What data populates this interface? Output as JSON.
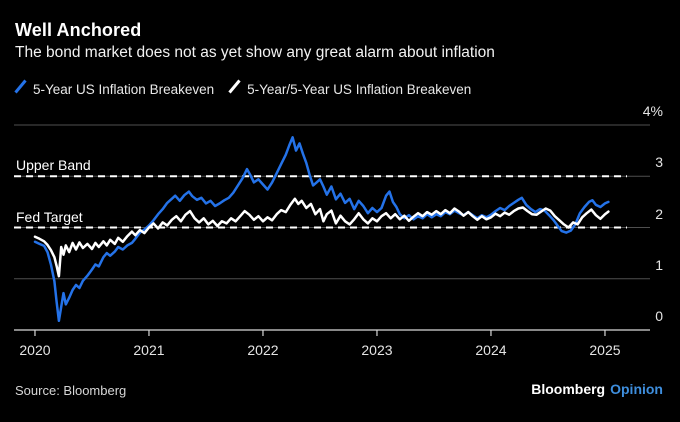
{
  "header": {
    "title": "Well Anchored",
    "subtitle": "The bond market does not as yet show any great alarm about inflation"
  },
  "legend": [
    {
      "label": "5-Year US Inflation Breakeven",
      "color": "#2472e8",
      "slug": "5y-breakeven"
    },
    {
      "label": "5-Year/5-Year US Inflation Breakeven",
      "color": "#ffffff",
      "slug": "5y5y-breakeven"
    }
  ],
  "footer": {
    "source": "Source: Bloomberg",
    "brand": "Bloomberg",
    "brand_suffix": "Opinion"
  },
  "colors": {
    "background": "#000000",
    "line_blue": "#2472e8",
    "line_white": "#ffffff",
    "grid": "#4f4f4f",
    "axis": "#d9d9d9",
    "dashed": "#ffffff",
    "opinion_blue": "#3e8edd"
  },
  "chart_data": {
    "type": "line",
    "title": "Well Anchored",
    "xlabel": "",
    "ylabel": "",
    "grid": true,
    "legend_position": "top",
    "x_range": [
      2019.816,
      2025.395
    ],
    "y_range": [
      0,
      4
    ],
    "x_ticks": [
      {
        "value": 2020,
        "label": "2020"
      },
      {
        "value": 2021,
        "label": "2021"
      },
      {
        "value": 2022,
        "label": "2022"
      },
      {
        "value": 2023,
        "label": "2023"
      },
      {
        "value": 2024,
        "label": "2024"
      },
      {
        "value": 2025,
        "label": "2025"
      }
    ],
    "y_ticks": [
      {
        "value": 0,
        "label": "0"
      },
      {
        "value": 1,
        "label": "1"
      },
      {
        "value": 2,
        "label": "2"
      },
      {
        "value": 3,
        "label": "3"
      },
      {
        "value": 4,
        "label": "4%"
      }
    ],
    "annotations": [
      {
        "label": "Upper Band",
        "value": 3.0,
        "style": "dashed",
        "slug": "upper-band"
      },
      {
        "label": "Fed Target",
        "value": 2.0,
        "style": "dashed",
        "slug": "fed-target"
      }
    ],
    "series": [
      {
        "name": "5-Year US Inflation Breakeven",
        "slug": "5y-breakeven",
        "color": "#2472e8",
        "points": [
          [
            2020.0,
            1.72
          ],
          [
            2020.04,
            1.68
          ],
          [
            2020.08,
            1.64
          ],
          [
            2020.11,
            1.52
          ],
          [
            2020.14,
            1.28
          ],
          [
            2020.17,
            0.95
          ],
          [
            2020.19,
            0.55
          ],
          [
            2020.21,
            0.18
          ],
          [
            2020.23,
            0.45
          ],
          [
            2020.25,
            0.72
          ],
          [
            2020.27,
            0.5
          ],
          [
            2020.3,
            0.63
          ],
          [
            2020.33,
            0.78
          ],
          [
            2020.36,
            0.88
          ],
          [
            2020.39,
            0.82
          ],
          [
            2020.42,
            0.96
          ],
          [
            2020.46,
            1.06
          ],
          [
            2020.5,
            1.18
          ],
          [
            2020.53,
            1.28
          ],
          [
            2020.56,
            1.24
          ],
          [
            2020.6,
            1.42
          ],
          [
            2020.63,
            1.5
          ],
          [
            2020.66,
            1.45
          ],
          [
            2020.7,
            1.53
          ],
          [
            2020.73,
            1.62
          ],
          [
            2020.77,
            1.57
          ],
          [
            2020.81,
            1.65
          ],
          [
            2020.85,
            1.7
          ],
          [
            2020.88,
            1.78
          ],
          [
            2020.92,
            1.9
          ],
          [
            2020.96,
            1.96
          ],
          [
            2021.0,
            2.04
          ],
          [
            2021.04,
            2.14
          ],
          [
            2021.08,
            2.26
          ],
          [
            2021.12,
            2.36
          ],
          [
            2021.16,
            2.48
          ],
          [
            2021.2,
            2.56
          ],
          [
            2021.23,
            2.62
          ],
          [
            2021.27,
            2.52
          ],
          [
            2021.31,
            2.63
          ],
          [
            2021.35,
            2.7
          ],
          [
            2021.38,
            2.61
          ],
          [
            2021.42,
            2.54
          ],
          [
            2021.46,
            2.58
          ],
          [
            2021.5,
            2.47
          ],
          [
            2021.54,
            2.52
          ],
          [
            2021.58,
            2.42
          ],
          [
            2021.62,
            2.47
          ],
          [
            2021.66,
            2.53
          ],
          [
            2021.7,
            2.58
          ],
          [
            2021.74,
            2.68
          ],
          [
            2021.78,
            2.82
          ],
          [
            2021.82,
            2.96
          ],
          [
            2021.86,
            3.14
          ],
          [
            2021.89,
            3.02
          ],
          [
            2021.92,
            2.88
          ],
          [
            2021.96,
            2.94
          ],
          [
            2022.0,
            2.84
          ],
          [
            2022.04,
            2.74
          ],
          [
            2022.08,
            2.88
          ],
          [
            2022.12,
            3.06
          ],
          [
            2022.16,
            3.24
          ],
          [
            2022.2,
            3.42
          ],
          [
            2022.23,
            3.6
          ],
          [
            2022.26,
            3.76
          ],
          [
            2022.29,
            3.5
          ],
          [
            2022.32,
            3.64
          ],
          [
            2022.35,
            3.44
          ],
          [
            2022.38,
            3.26
          ],
          [
            2022.41,
            3.02
          ],
          [
            2022.44,
            2.82
          ],
          [
            2022.47,
            2.88
          ],
          [
            2022.5,
            2.94
          ],
          [
            2022.53,
            2.8
          ],
          [
            2022.56,
            2.64
          ],
          [
            2022.6,
            2.8
          ],
          [
            2022.64,
            2.55
          ],
          [
            2022.68,
            2.66
          ],
          [
            2022.72,
            2.48
          ],
          [
            2022.76,
            2.56
          ],
          [
            2022.8,
            2.36
          ],
          [
            2022.84,
            2.52
          ],
          [
            2022.88,
            2.42
          ],
          [
            2022.92,
            2.28
          ],
          [
            2022.96,
            2.38
          ],
          [
            2023.0,
            2.3
          ],
          [
            2023.04,
            2.38
          ],
          [
            2023.08,
            2.62
          ],
          [
            2023.11,
            2.7
          ],
          [
            2023.14,
            2.5
          ],
          [
            2023.17,
            2.4
          ],
          [
            2023.2,
            2.26
          ],
          [
            2023.24,
            2.18
          ],
          [
            2023.28,
            2.24
          ],
          [
            2023.32,
            2.16
          ],
          [
            2023.36,
            2.22
          ],
          [
            2023.4,
            2.18
          ],
          [
            2023.44,
            2.26
          ],
          [
            2023.48,
            2.2
          ],
          [
            2023.52,
            2.26
          ],
          [
            2023.56,
            2.22
          ],
          [
            2023.6,
            2.3
          ],
          [
            2023.64,
            2.26
          ],
          [
            2023.68,
            2.33
          ],
          [
            2023.72,
            2.28
          ],
          [
            2023.76,
            2.24
          ],
          [
            2023.8,
            2.3
          ],
          [
            2023.84,
            2.24
          ],
          [
            2023.88,
            2.18
          ],
          [
            2023.92,
            2.24
          ],
          [
            2023.96,
            2.2
          ],
          [
            2024.0,
            2.25
          ],
          [
            2024.04,
            2.32
          ],
          [
            2024.08,
            2.38
          ],
          [
            2024.12,
            2.34
          ],
          [
            2024.16,
            2.42
          ],
          [
            2024.2,
            2.48
          ],
          [
            2024.24,
            2.54
          ],
          [
            2024.27,
            2.58
          ],
          [
            2024.31,
            2.44
          ],
          [
            2024.35,
            2.36
          ],
          [
            2024.39,
            2.3
          ],
          [
            2024.43,
            2.36
          ],
          [
            2024.47,
            2.33
          ],
          [
            2024.51,
            2.24
          ],
          [
            2024.55,
            2.14
          ],
          [
            2024.59,
            2.02
          ],
          [
            2024.62,
            1.93
          ],
          [
            2024.66,
            1.9
          ],
          [
            2024.7,
            1.94
          ],
          [
            2024.74,
            2.06
          ],
          [
            2024.78,
            2.28
          ],
          [
            2024.82,
            2.4
          ],
          [
            2024.86,
            2.5
          ],
          [
            2024.89,
            2.53
          ],
          [
            2024.92,
            2.44
          ],
          [
            2024.96,
            2.4
          ],
          [
            2025.0,
            2.47
          ],
          [
            2025.03,
            2.5
          ]
        ]
      },
      {
        "name": "5-Year/5-Year US Inflation Breakeven",
        "slug": "5y5y-breakeven",
        "color": "#ffffff",
        "points": [
          [
            2020.0,
            1.82
          ],
          [
            2020.04,
            1.78
          ],
          [
            2020.08,
            1.73
          ],
          [
            2020.11,
            1.66
          ],
          [
            2020.14,
            1.56
          ],
          [
            2020.17,
            1.42
          ],
          [
            2020.19,
            1.25
          ],
          [
            2020.21,
            1.05
          ],
          [
            2020.23,
            1.62
          ],
          [
            2020.25,
            1.47
          ],
          [
            2020.27,
            1.65
          ],
          [
            2020.3,
            1.52
          ],
          [
            2020.33,
            1.7
          ],
          [
            2020.36,
            1.57
          ],
          [
            2020.39,
            1.71
          ],
          [
            2020.42,
            1.6
          ],
          [
            2020.46,
            1.68
          ],
          [
            2020.5,
            1.58
          ],
          [
            2020.53,
            1.7
          ],
          [
            2020.56,
            1.62
          ],
          [
            2020.6,
            1.73
          ],
          [
            2020.63,
            1.65
          ],
          [
            2020.66,
            1.76
          ],
          [
            2020.7,
            1.68
          ],
          [
            2020.73,
            1.8
          ],
          [
            2020.77,
            1.72
          ],
          [
            2020.81,
            1.83
          ],
          [
            2020.85,
            1.92
          ],
          [
            2020.88,
            1.85
          ],
          [
            2020.92,
            1.95
          ],
          [
            2020.96,
            1.89
          ],
          [
            2021.0,
            2.0
          ],
          [
            2021.04,
            2.08
          ],
          [
            2021.08,
            1.98
          ],
          [
            2021.12,
            2.1
          ],
          [
            2021.16,
            2.04
          ],
          [
            2021.2,
            2.15
          ],
          [
            2021.24,
            2.22
          ],
          [
            2021.28,
            2.12
          ],
          [
            2021.32,
            2.25
          ],
          [
            2021.36,
            2.32
          ],
          [
            2021.4,
            2.18
          ],
          [
            2021.44,
            2.1
          ],
          [
            2021.48,
            2.18
          ],
          [
            2021.52,
            2.06
          ],
          [
            2021.56,
            2.13
          ],
          [
            2021.6,
            2.03
          ],
          [
            2021.64,
            2.12
          ],
          [
            2021.68,
            2.08
          ],
          [
            2021.72,
            2.18
          ],
          [
            2021.76,
            2.12
          ],
          [
            2021.8,
            2.22
          ],
          [
            2021.84,
            2.32
          ],
          [
            2021.88,
            2.25
          ],
          [
            2021.92,
            2.15
          ],
          [
            2021.96,
            2.22
          ],
          [
            2022.0,
            2.12
          ],
          [
            2022.04,
            2.2
          ],
          [
            2022.08,
            2.14
          ],
          [
            2022.12,
            2.26
          ],
          [
            2022.16,
            2.34
          ],
          [
            2022.2,
            2.3
          ],
          [
            2022.24,
            2.44
          ],
          [
            2022.28,
            2.56
          ],
          [
            2022.31,
            2.46
          ],
          [
            2022.34,
            2.52
          ],
          [
            2022.38,
            2.38
          ],
          [
            2022.42,
            2.46
          ],
          [
            2022.46,
            2.26
          ],
          [
            2022.5,
            2.36
          ],
          [
            2022.53,
            2.12
          ],
          [
            2022.56,
            2.26
          ],
          [
            2022.6,
            2.33
          ],
          [
            2022.64,
            2.08
          ],
          [
            2022.68,
            2.23
          ],
          [
            2022.72,
            2.12
          ],
          [
            2022.76,
            2.06
          ],
          [
            2022.8,
            2.16
          ],
          [
            2022.84,
            2.28
          ],
          [
            2022.88,
            2.16
          ],
          [
            2022.92,
            2.08
          ],
          [
            2022.96,
            2.18
          ],
          [
            2023.0,
            2.12
          ],
          [
            2023.04,
            2.22
          ],
          [
            2023.08,
            2.28
          ],
          [
            2023.12,
            2.18
          ],
          [
            2023.16,
            2.26
          ],
          [
            2023.2,
            2.16
          ],
          [
            2023.24,
            2.23
          ],
          [
            2023.28,
            2.13
          ],
          [
            2023.32,
            2.21
          ],
          [
            2023.36,
            2.28
          ],
          [
            2023.4,
            2.22
          ],
          [
            2023.44,
            2.3
          ],
          [
            2023.48,
            2.25
          ],
          [
            2023.52,
            2.32
          ],
          [
            2023.56,
            2.26
          ],
          [
            2023.6,
            2.34
          ],
          [
            2023.64,
            2.28
          ],
          [
            2023.68,
            2.37
          ],
          [
            2023.72,
            2.31
          ],
          [
            2023.76,
            2.23
          ],
          [
            2023.8,
            2.3
          ],
          [
            2023.84,
            2.22
          ],
          [
            2023.88,
            2.15
          ],
          [
            2023.92,
            2.22
          ],
          [
            2023.96,
            2.16
          ],
          [
            2024.0,
            2.2
          ],
          [
            2024.04,
            2.27
          ],
          [
            2024.08,
            2.22
          ],
          [
            2024.12,
            2.29
          ],
          [
            2024.16,
            2.25
          ],
          [
            2024.2,
            2.32
          ],
          [
            2024.24,
            2.37
          ],
          [
            2024.28,
            2.39
          ],
          [
            2024.32,
            2.32
          ],
          [
            2024.36,
            2.26
          ],
          [
            2024.4,
            2.25
          ],
          [
            2024.44,
            2.31
          ],
          [
            2024.48,
            2.37
          ],
          [
            2024.52,
            2.33
          ],
          [
            2024.56,
            2.22
          ],
          [
            2024.6,
            2.14
          ],
          [
            2024.64,
            2.06
          ],
          [
            2024.68,
            2.0
          ],
          [
            2024.72,
            2.1
          ],
          [
            2024.76,
            2.06
          ],
          [
            2024.8,
            2.2
          ],
          [
            2024.84,
            2.28
          ],
          [
            2024.88,
            2.35
          ],
          [
            2024.92,
            2.24
          ],
          [
            2024.96,
            2.17
          ],
          [
            2025.0,
            2.26
          ],
          [
            2025.03,
            2.31
          ]
        ]
      }
    ]
  }
}
